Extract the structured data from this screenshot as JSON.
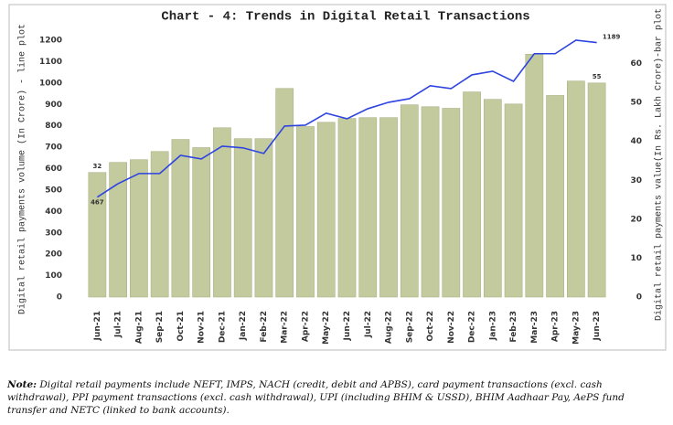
{
  "chart_data": {
    "type": "bar-line",
    "title": "Chart - 4: Trends in Digital Retail Transactions",
    "y_label": "Digital retail payments volume (In Crore) - line plot",
    "y2_label": "Digital retail payments value(In Rs. Lakh Crore)-bar plot",
    "categories": [
      "Jun-21",
      "Jul-21",
      "Aug-21",
      "Sep-21",
      "Oct-21",
      "Nov-21",
      "Dec-21",
      "Jan-22",
      "Feb-22",
      "Mar-22",
      "Apr-22",
      "May-22",
      "Jun-22",
      "Jul-22",
      "Aug-22",
      "Sep-22",
      "Oct-22",
      "Nov-22",
      "Dec-22",
      "Jan-23",
      "Feb-23",
      "Mar-23",
      "Apr-23",
      "May-23",
      "Jun-23"
    ],
    "series": [
      {
        "type": "bar",
        "axis": "y2",
        "color": "#c3cb9e",
        "values": [
          32,
          34.6,
          35.3,
          37.4,
          40.5,
          38.4,
          43.5,
          40.7,
          40.7,
          53.6,
          43.8,
          44.9,
          45.9,
          46.1,
          46.1,
          49.4,
          48.9,
          48.5,
          52.7,
          50.8,
          49.6,
          62.4,
          51.8,
          55.5,
          55
        ]
      },
      {
        "type": "line",
        "axis": "y",
        "color": "#2e44e0",
        "values": [
          467,
          530,
          577,
          577,
          662,
          645,
          705,
          697,
          671,
          799,
          803,
          859,
          833,
          880,
          910,
          927,
          987,
          974,
          1038,
          1055,
          1008,
          1137,
          1137,
          1200,
          1189
        ]
      }
    ],
    "ylim": [
      0,
      1200
    ],
    "yticks": [
      0,
      100,
      200,
      300,
      400,
      500,
      600,
      700,
      800,
      900,
      1000,
      1100,
      1200
    ],
    "y2lim": [
      0,
      66
    ],
    "y2ticks": [
      0,
      10,
      20,
      30,
      40,
      50,
      60
    ]
  },
  "note": {
    "label": "Note:",
    "text": "Digital retail payments include NEFT, IMPS, NACH (credit, debit and APBS), card payment transactions (excl. cash withdrawal), PPI payment transactions (excl. cash withdrawal), UPI (including BHIM & USSD), BHIM Aadhaar Pay, AePS fund transfer and NETC (linked to bank accounts)."
  }
}
